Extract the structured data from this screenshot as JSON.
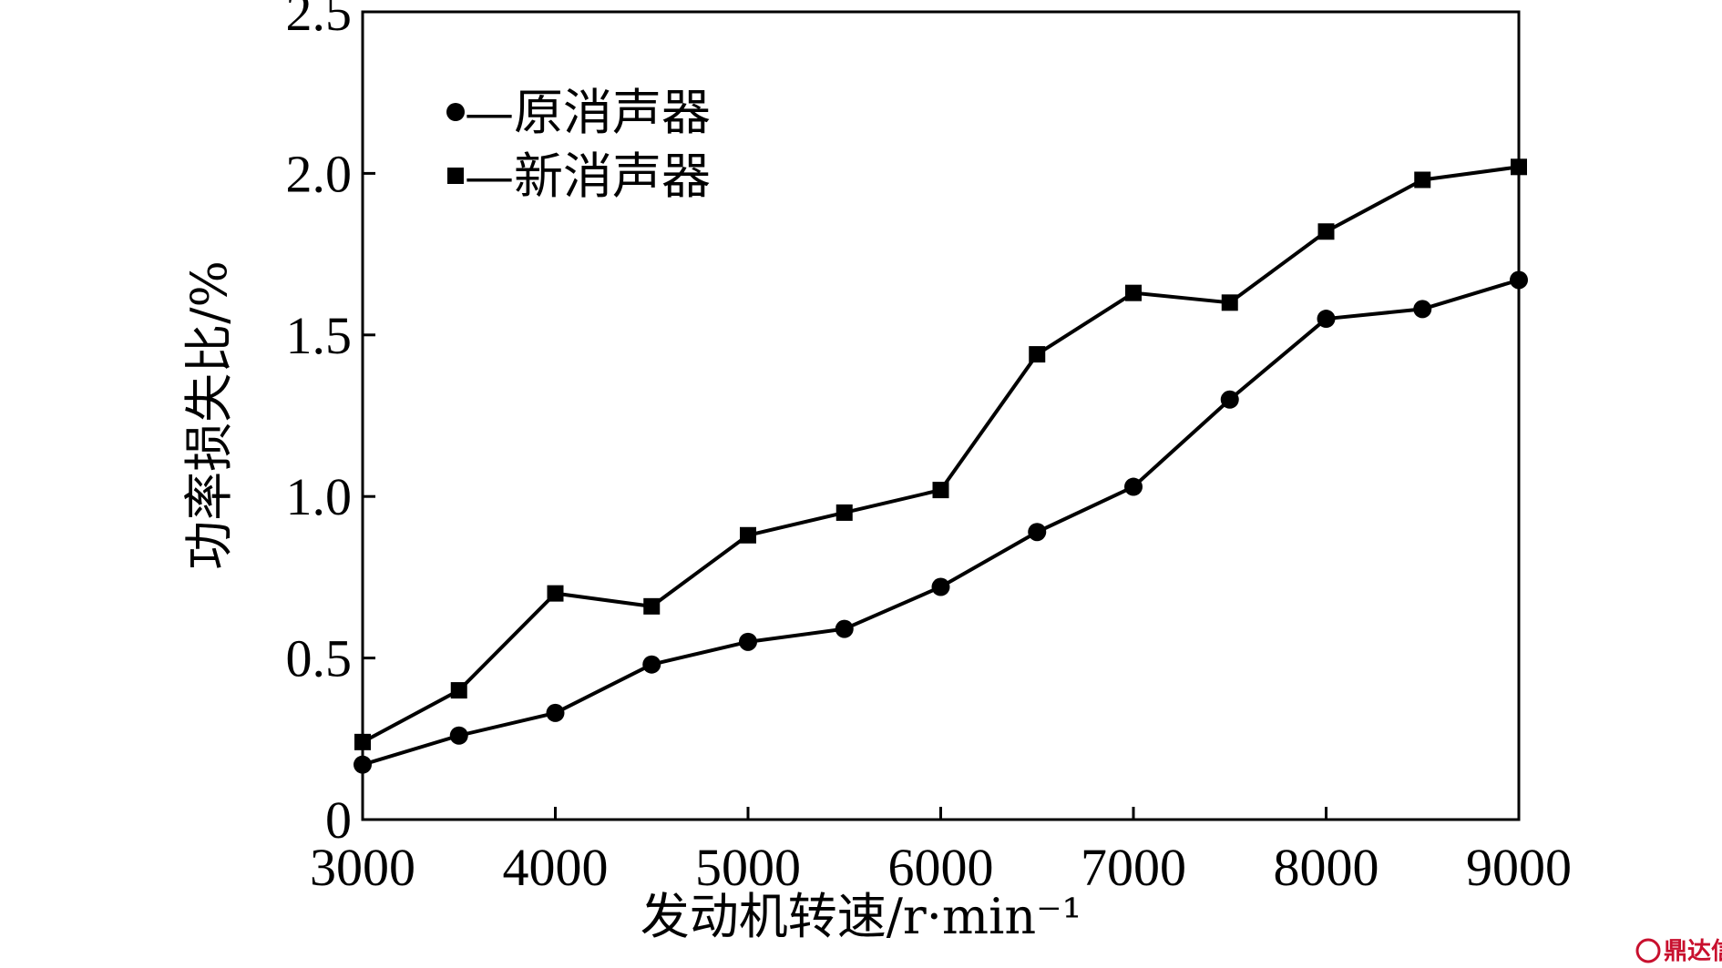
{
  "chart_data": {
    "type": "line",
    "title": "",
    "xlabel": "发动机转速/r·min⁻¹",
    "ylabel": "功率损失比/%",
    "xlim": [
      3000,
      9000
    ],
    "ylim": [
      0,
      2.5
    ],
    "xticks": [
      3000,
      4000,
      5000,
      6000,
      7000,
      8000,
      9000
    ],
    "xtick_labels": [
      "3000",
      "4000",
      "5000",
      "6000",
      "7000",
      "8000",
      "9000"
    ],
    "yticks": [
      0,
      0.5,
      1.0,
      1.5,
      2.0,
      2.5
    ],
    "ytick_labels": [
      "0",
      "0.5",
      "1.0",
      "1.5",
      "2.0",
      "2.5"
    ],
    "grid": false,
    "legend_position": "top-left",
    "x": [
      3000,
      3500,
      4000,
      4500,
      5000,
      5500,
      6000,
      6500,
      7000,
      7500,
      8000,
      8500,
      9000
    ],
    "series": [
      {
        "name": "原消声器",
        "legend_label": "—原消声器",
        "marker": "circle",
        "values": [
          0.17,
          0.26,
          0.33,
          0.48,
          0.55,
          0.59,
          0.72,
          0.89,
          1.03,
          1.3,
          1.55,
          1.58,
          1.67
        ]
      },
      {
        "name": "新消声器",
        "legend_label": "—新消声器",
        "marker": "square",
        "values": [
          0.24,
          0.4,
          0.7,
          0.66,
          0.88,
          0.95,
          1.02,
          1.44,
          1.63,
          1.6,
          1.82,
          1.98,
          2.02
        ]
      }
    ]
  },
  "watermark": {
    "text": "鼎达信",
    "color": "#c8102e"
  }
}
